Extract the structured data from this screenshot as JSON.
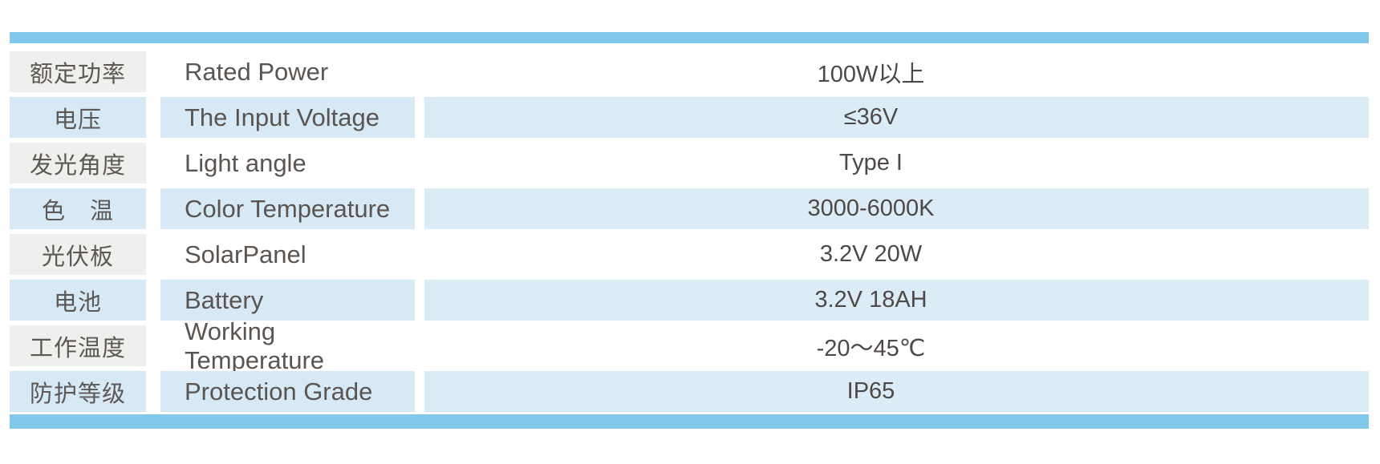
{
  "colors": {
    "accent_bar": "#82c8ea",
    "row_blue": "#d7e9f5",
    "row_blue_value": "#dbecf7",
    "row_gray": "#efefee",
    "text_chinese": "#5d5855",
    "text_english": "#5a5551",
    "text_value": "#4e4946"
  },
  "spec_table": {
    "rows": [
      {
        "cn": "额定功率",
        "en": "Rated Power",
        "value": "100W以上"
      },
      {
        "cn": "电压",
        "en": "The Input Voltage",
        "value": "≤36V"
      },
      {
        "cn": "发光角度",
        "en": "Light angle",
        "value": "Type I"
      },
      {
        "cn": "色　温",
        "en": "Color Temperature",
        "value": "3000-6000K"
      },
      {
        "cn": "光伏板",
        "en": "SolarPanel",
        "value": "3.2V 20W"
      },
      {
        "cn": "电池",
        "en": "Battery",
        "value": "3.2V 18AH"
      },
      {
        "cn": "工作温度",
        "en": "Working Temperature",
        "value": "-20～45℃"
      },
      {
        "cn": "防护等级",
        "en": "Protection Grade",
        "value": "IP65"
      }
    ]
  }
}
